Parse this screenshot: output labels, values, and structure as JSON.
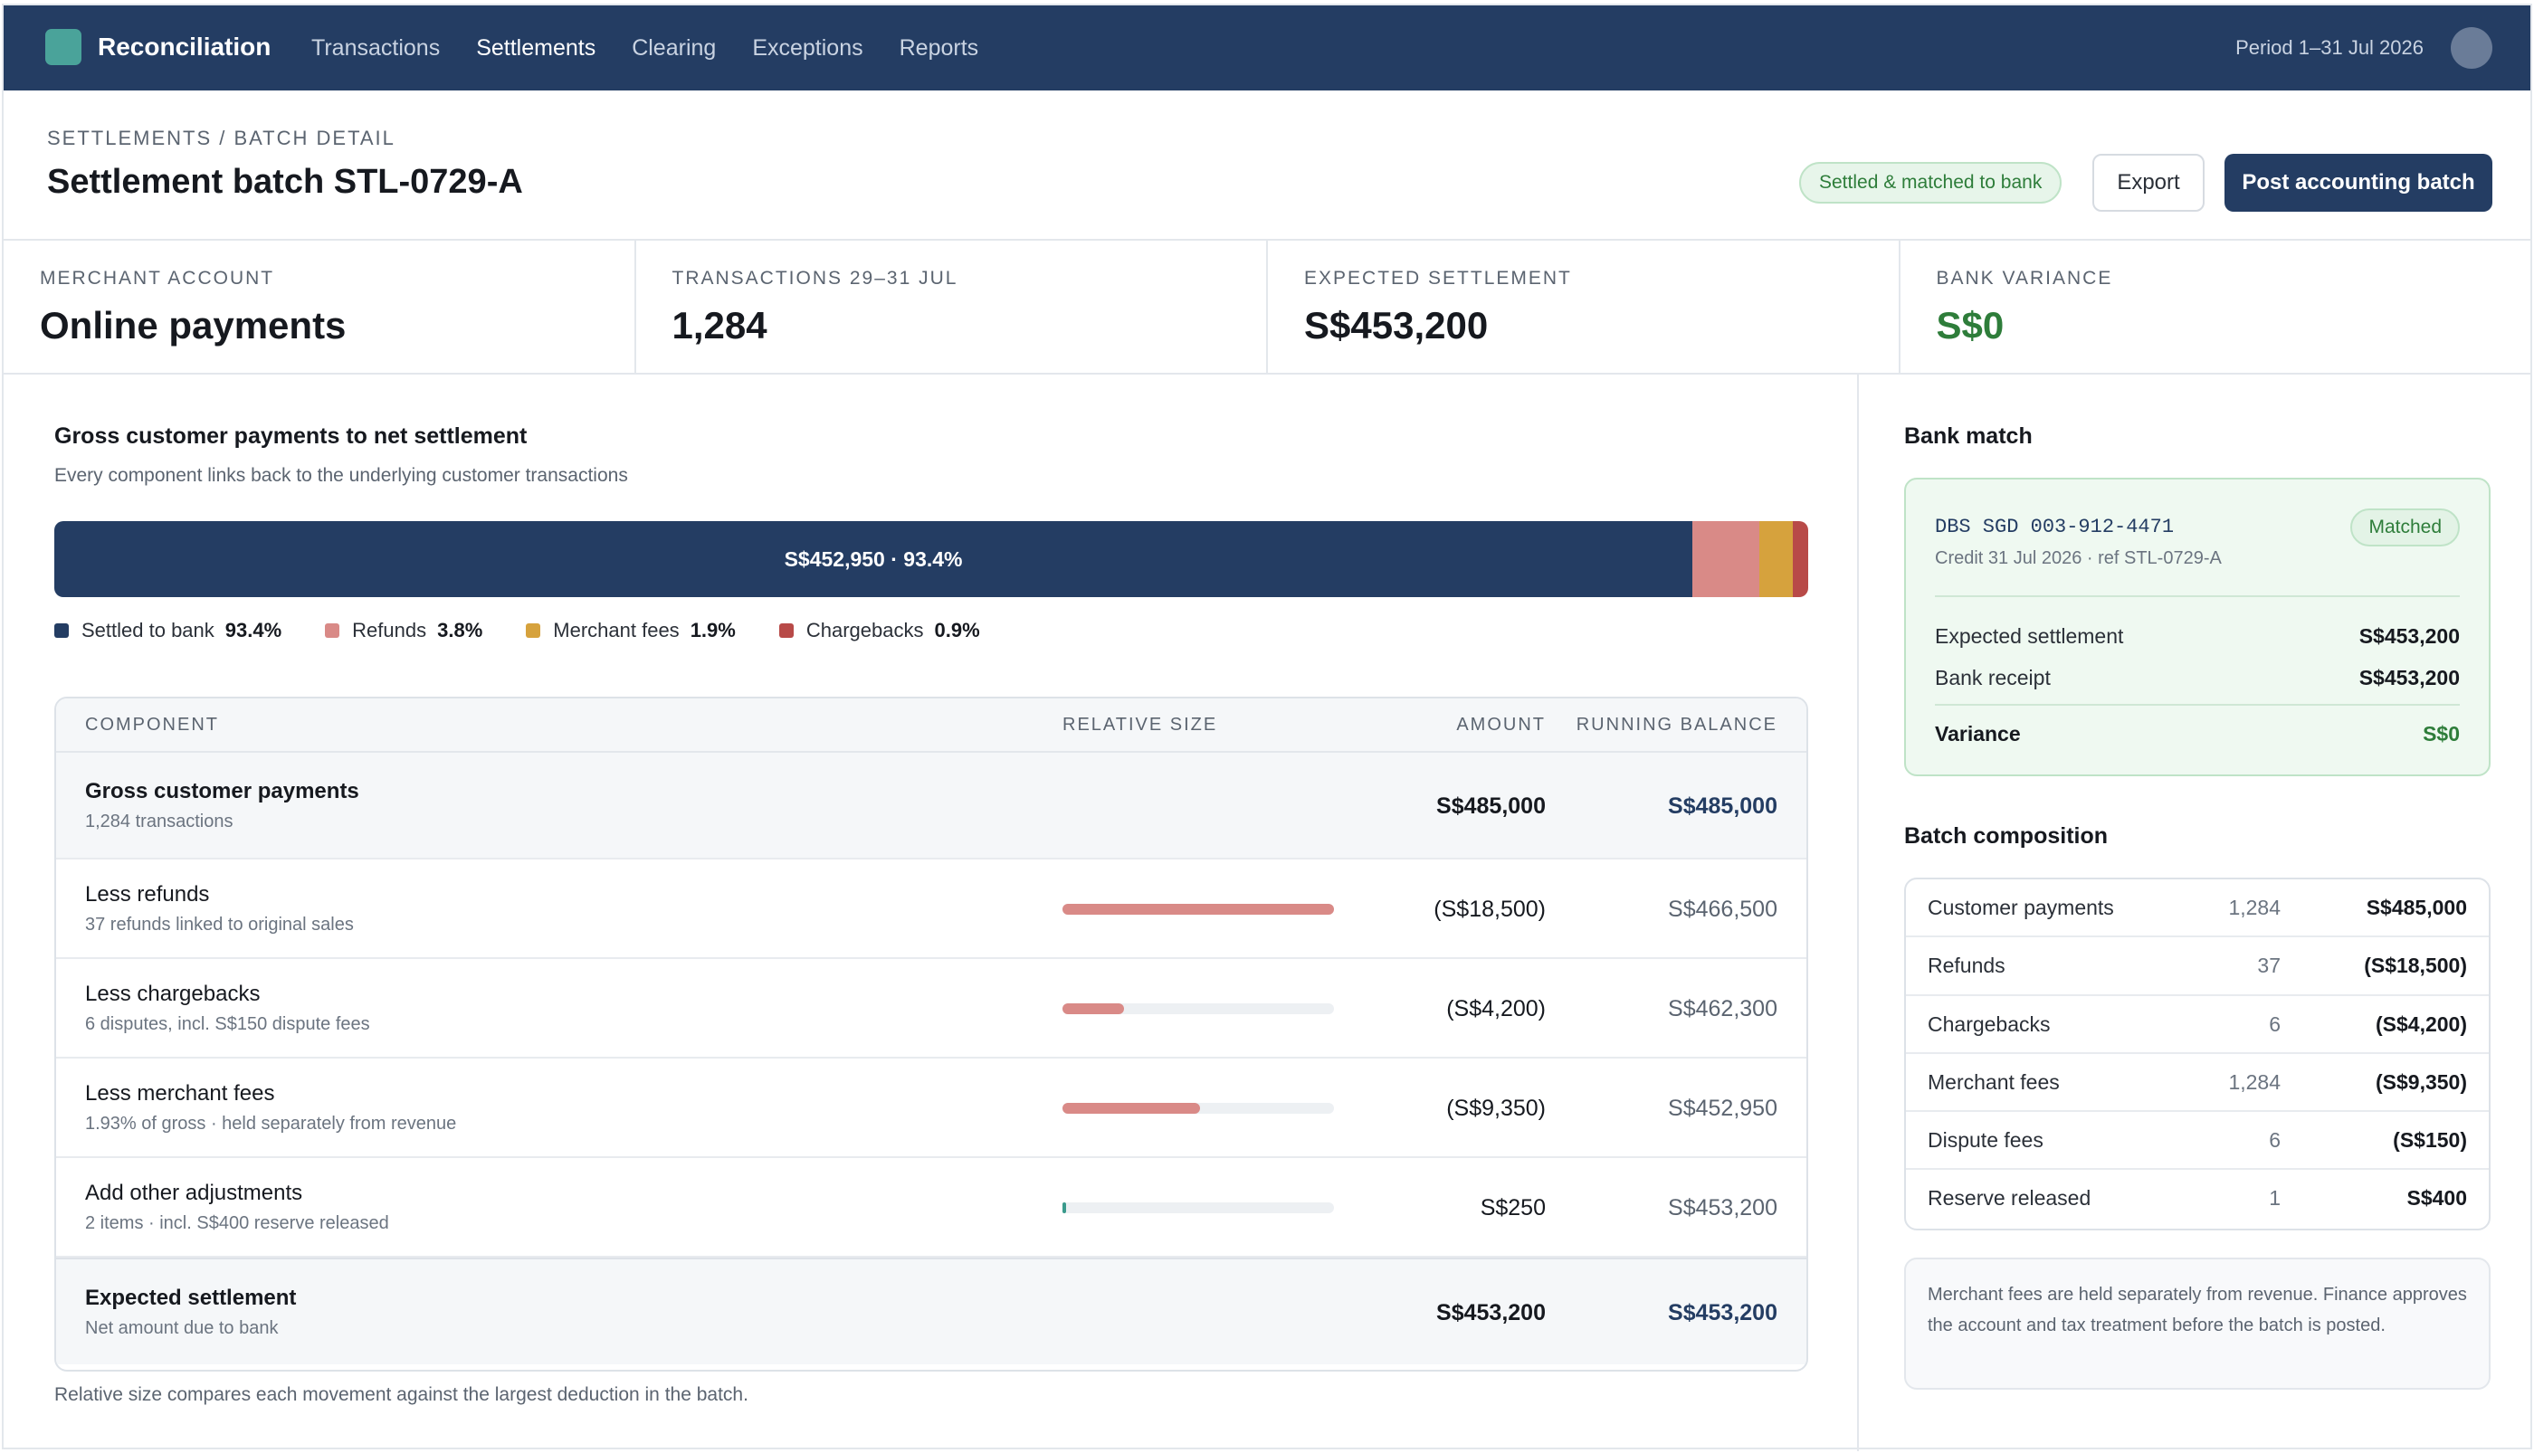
{
  "topbar": {
    "app_title": "Reconciliation",
    "nav": [
      "Transactions",
      "Settlements",
      "Clearing",
      "Exceptions",
      "Reports"
    ],
    "active_nav": "Settlements",
    "period": "Period 1–31 Jul 2026",
    "colors": {
      "bar": "#243d63",
      "logo": "#4aa39a"
    }
  },
  "header": {
    "breadcrumb": "SETTLEMENTS / BATCH DETAIL",
    "title": "Settlement batch STL-0729-A",
    "status": "Settled & matched to bank",
    "export_label": "Export",
    "post_label": "Post accounting batch"
  },
  "kpis": [
    {
      "label": "MERCHANT ACCOUNT",
      "value": "Online payments"
    },
    {
      "label": "TRANSACTIONS 29–31 JUL",
      "value": "1,284"
    },
    {
      "label": "EXPECTED SETTLEMENT",
      "value": "S$453,200"
    },
    {
      "label": "BANK VARIANCE",
      "value": "S$0"
    }
  ],
  "breakdown": {
    "title": "Gross customer payments to net settlement",
    "subtitle": "Every component links back to the underlying customer transactions",
    "bar_label": "S$452,950 · 93.4%",
    "segments": [
      {
        "name": "Settled to bank",
        "pct_label": "93.4%",
        "share": 0.934,
        "color": "#243d63"
      },
      {
        "name": "Refunds",
        "pct_label": "3.8%",
        "share": 0.038,
        "color": "#d98a87"
      },
      {
        "name": "Merchant fees",
        "pct_label": "1.9%",
        "share": 0.019,
        "color": "#d6a23d"
      },
      {
        "name": "Chargebacks",
        "pct_label": "0.9%",
        "share": 0.009,
        "color": "#b84a48"
      }
    ]
  },
  "table": {
    "headers": {
      "component": "COMPONENT",
      "relative": "RELATIVE SIZE",
      "amount": "AMOUNT",
      "balance": "RUNNING BALANCE"
    },
    "rows": [
      {
        "name": "Gross customer payments",
        "sub": "1,284 transactions",
        "amount": "S$485,000",
        "balance": "S$485,000",
        "relative": null
      },
      {
        "name": "Less refunds",
        "sub": "37 refunds linked to original sales",
        "amount": "(S$18,500)",
        "balance": "S$466,500",
        "relative": 1.0,
        "bar_color": "#d98a87"
      },
      {
        "name": "Less chargebacks",
        "sub": "6 disputes, incl. S$150 dispute fees",
        "amount": "(S$4,200)",
        "balance": "S$462,300",
        "relative": 0.227,
        "bar_color": "#d98a87"
      },
      {
        "name": "Less merchant fees",
        "sub": "1.93% of gross · held separately from revenue",
        "amount": "(S$9,350)",
        "balance": "S$452,950",
        "relative": 0.505,
        "bar_color": "#d98a87"
      },
      {
        "name": "Add other adjustments",
        "sub": "2 items · incl. S$400 reserve released",
        "amount": "S$250",
        "balance": "S$453,200",
        "relative": 0.0135,
        "bar_color": "#3a9a8c"
      },
      {
        "name": "Expected settlement",
        "sub": "Net amount due to bank",
        "amount": "S$453,200",
        "balance": "S$453,200",
        "relative": null
      }
    ],
    "footnote": "Relative size compares each movement against the largest deduction in the batch."
  },
  "bank_match": {
    "title": "Bank match",
    "account": "DBS SGD 003-912-4471",
    "credit": "Credit 31 Jul 2026 · ref STL-0729-A",
    "badge": "Matched",
    "expected_label": "Expected settlement",
    "expected_value": "S$453,200",
    "receipt_label": "Bank receipt",
    "receipt_value": "S$453,200",
    "variance_label": "Variance",
    "variance_value": "S$0"
  },
  "composition": {
    "title": "Batch composition",
    "rows": [
      {
        "label": "Customer payments",
        "count": "1,284",
        "amount": "S$485,000"
      },
      {
        "label": "Refunds",
        "count": "37",
        "amount": "(S$18,500)"
      },
      {
        "label": "Chargebacks",
        "count": "6",
        "amount": "(S$4,200)"
      },
      {
        "label": "Merchant fees",
        "count": "1,284",
        "amount": "(S$9,350)"
      },
      {
        "label": "Dispute fees",
        "count": "6",
        "amount": "(S$150)"
      },
      {
        "label": "Reserve released",
        "count": "1",
        "amount": "S$400"
      }
    ],
    "note": "Merchant fees are held separately from revenue. Finance approves the account and tax treatment before the batch is posted."
  }
}
